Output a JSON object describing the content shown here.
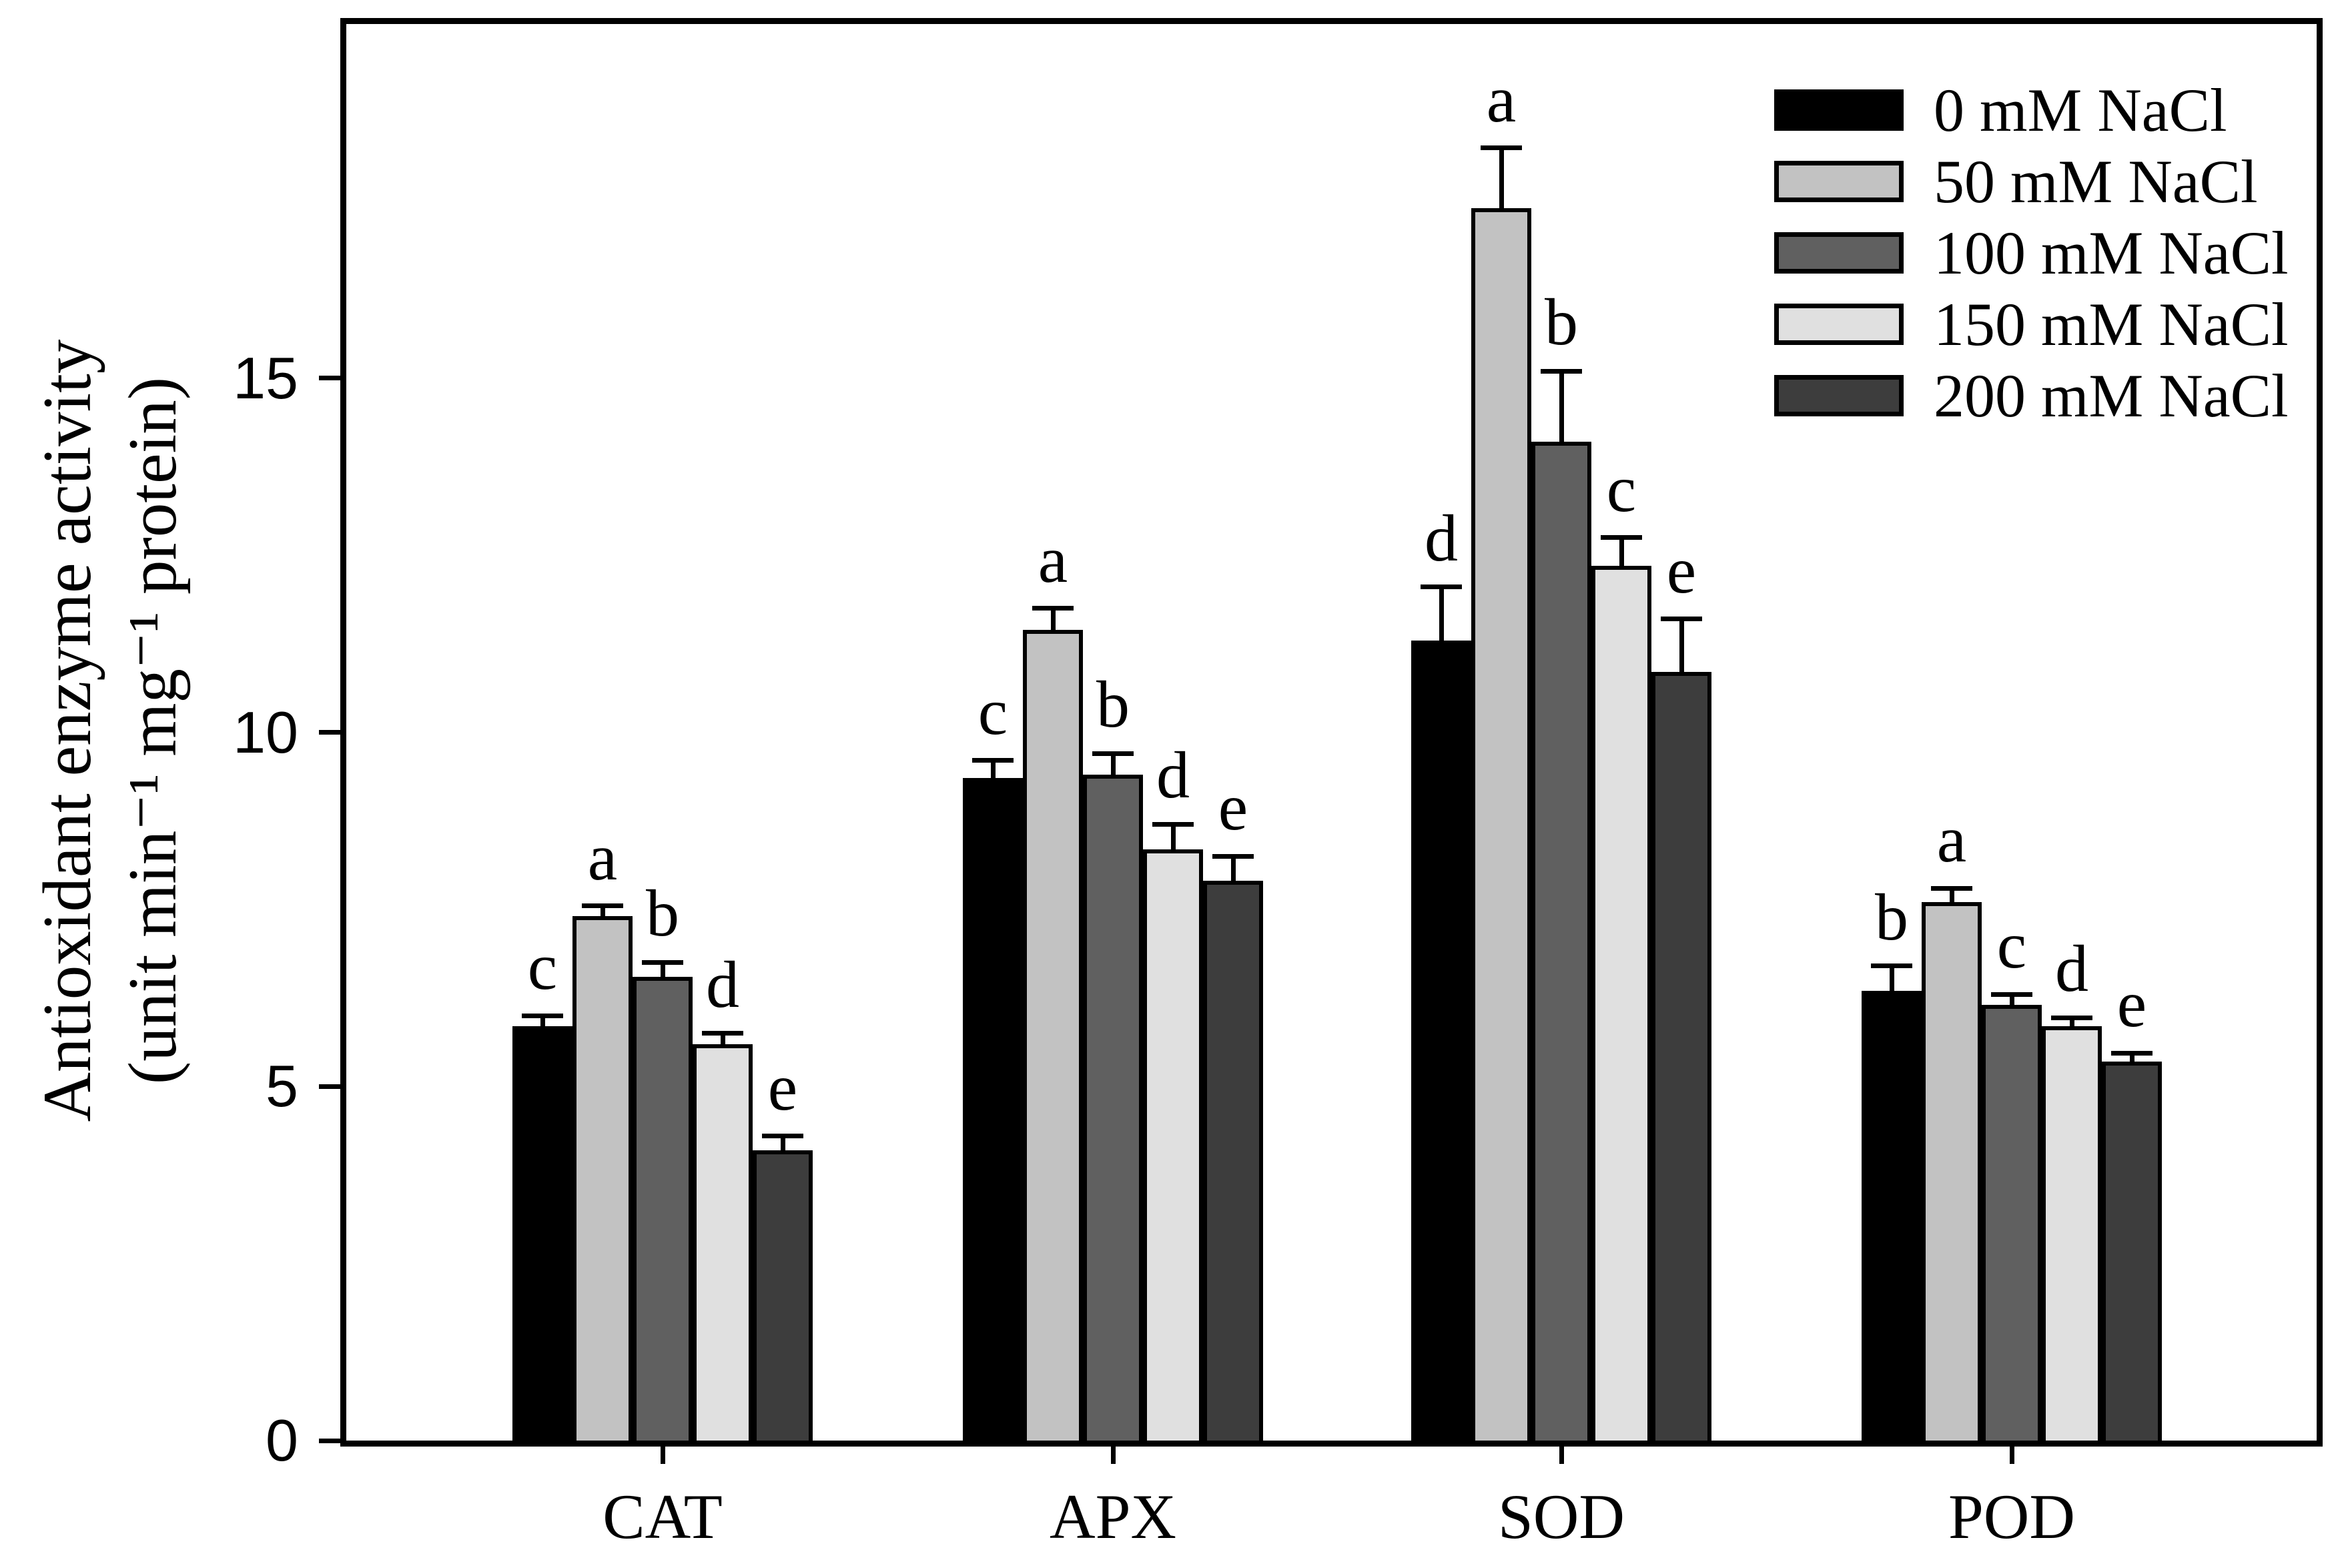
{
  "chart_data": {
    "type": "bar",
    "title": "",
    "ylabel_line1": "Antioxidant enzyme activity",
    "ylabel_line2": "(unit min⁻¹ mg⁻¹ protein)",
    "xlabel": "",
    "ylim": [
      0,
      20
    ],
    "yticks": [
      "0",
      "5",
      "10",
      "15"
    ],
    "ytick_values": [
      0,
      5,
      10,
      15
    ],
    "grid": false,
    "legend_position": "top-right-inside",
    "categories": [
      "CAT",
      "APX",
      "SOD",
      "POD"
    ],
    "series": [
      {
        "name": "0 mM NaCl",
        "color": "#000000",
        "values": [
          5.85,
          9.35,
          11.3,
          6.35
        ],
        "errors": [
          0.15,
          0.25,
          0.75,
          0.35
        ],
        "letters": [
          "c",
          "c",
          "d",
          "b"
        ]
      },
      {
        "name": "50 mM NaCl",
        "color": "#c2c2c2",
        "values": [
          7.4,
          11.45,
          17.4,
          7.6
        ],
        "errors": [
          0.15,
          0.3,
          0.85,
          0.2
        ],
        "letters": [
          "a",
          "a",
          "a",
          "a"
        ]
      },
      {
        "name": "100 mM NaCl",
        "color": "#606060",
        "values": [
          6.55,
          9.4,
          14.1,
          6.15
        ],
        "errors": [
          0.2,
          0.3,
          1.0,
          0.15
        ],
        "letters": [
          "b",
          "b",
          "b",
          "c"
        ]
      },
      {
        "name": "150 mM NaCl",
        "color": "#e0e0e0",
        "values": [
          5.6,
          8.35,
          12.35,
          5.85
        ],
        "errors": [
          0.15,
          0.35,
          0.4,
          0.12
        ],
        "letters": [
          "d",
          "d",
          "c",
          "d"
        ]
      },
      {
        "name": "200 mM NaCl",
        "color": "#3d3d3d",
        "values": [
          4.1,
          7.9,
          10.85,
          5.35
        ],
        "errors": [
          0.2,
          0.35,
          0.75,
          0.12
        ],
        "letters": [
          "e",
          "e",
          "e",
          "e"
        ]
      }
    ],
    "axis_color": "#000000"
  }
}
